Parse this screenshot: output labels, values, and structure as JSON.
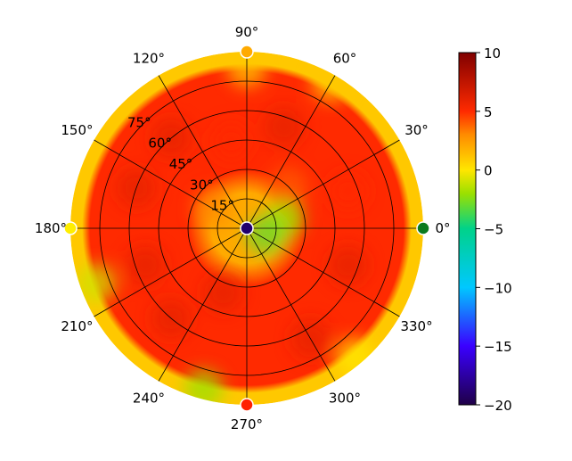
{
  "chart_data": {
    "type": "heatmap",
    "projection": "polar",
    "title": "",
    "angular_ticks_deg": [
      0,
      30,
      60,
      90,
      120,
      150,
      180,
      210,
      240,
      270,
      300,
      330
    ],
    "angular_tick_labels": [
      "0°",
      "30°",
      "60°",
      "90°",
      "120°",
      "150°",
      "180°",
      "210°",
      "240°",
      "270°",
      "300°",
      "330°"
    ],
    "radial_ticks": [
      15,
      30,
      45,
      60,
      75
    ],
    "radial_tick_labels": [
      "15°",
      "30°",
      "45°",
      "60°",
      "75°"
    ],
    "radial_range": [
      0,
      90
    ],
    "grid": true,
    "colormap": "jet",
    "color_range": [
      -20,
      10
    ],
    "colorbar": {
      "position": "right",
      "ticks": [
        10,
        5,
        0,
        -5,
        -10,
        -15,
        -20
      ],
      "tick_labels": [
        "10",
        "5",
        "0",
        "−5",
        "−10",
        "−15",
        "−20"
      ]
    },
    "colorbar_stops": [
      {
        "v": -20,
        "c": "#1f0047"
      },
      {
        "v": -15,
        "c": "#3a00ff"
      },
      {
        "v": -10,
        "c": "#00c8ff"
      },
      {
        "v": -5,
        "c": "#00d28a"
      },
      {
        "v": -2,
        "c": "#9be000"
      },
      {
        "v": 0,
        "c": "#ffe600"
      },
      {
        "v": 3,
        "c": "#ff8c00"
      },
      {
        "v": 5,
        "c": "#ff2a00"
      },
      {
        "v": 10,
        "c": "#800000"
      }
    ],
    "markers": [
      {
        "azimuth": 0,
        "r": 90,
        "value": -4,
        "color": "#0a7a1e"
      },
      {
        "azimuth": 90,
        "r": 90,
        "value": 2,
        "color": "#ffaa00"
      },
      {
        "azimuth": 180,
        "r": 90,
        "value": 0,
        "color": "#ffee00"
      },
      {
        "azimuth": 270,
        "r": 90,
        "value": 5,
        "color": "#ff2200"
      },
      {
        "azimuth": 0,
        "r": 0,
        "value": -19,
        "color": "#20006e"
      }
    ],
    "field_description_levels": {
      "outer_rim_r": [
        84,
        90
      ],
      "outer_rim_value": 1,
      "band_r": [
        30,
        84
      ],
      "band_value": 5,
      "center_r": [
        0,
        30
      ],
      "center_value": 2
    },
    "blobs": [
      {
        "az": 130,
        "r": 60,
        "value": 6
      },
      {
        "az": 160,
        "r": 60,
        "value": 6
      },
      {
        "az": 200,
        "r": 55,
        "value": 6
      },
      {
        "az": 230,
        "r": 60,
        "value": 6
      },
      {
        "az": 300,
        "r": 65,
        "value": 6
      },
      {
        "az": 340,
        "r": 55,
        "value": 6
      },
      {
        "az": 20,
        "r": 55,
        "value": 5
      },
      {
        "az": 70,
        "r": 55,
        "value": 6
      },
      {
        "az": 100,
        "r": 45,
        "value": 5
      },
      {
        "az": 250,
        "r": 35,
        "value": 6
      },
      {
        "az": 45,
        "r": 30,
        "value": 4
      },
      {
        "az": 150,
        "r": 20,
        "value": 3
      },
      {
        "az": 90,
        "r": 82,
        "value": 1
      },
      {
        "az": 200,
        "r": 82,
        "value": -1
      },
      {
        "az": 255,
        "r": 85,
        "value": -2
      },
      {
        "az": 15,
        "r": 20,
        "value": -2
      },
      {
        "az": 340,
        "r": 10,
        "value": -3
      },
      {
        "az": 310,
        "r": 86,
        "value": 0
      },
      {
        "az": 60,
        "r": 86,
        "value": 1
      }
    ]
  }
}
